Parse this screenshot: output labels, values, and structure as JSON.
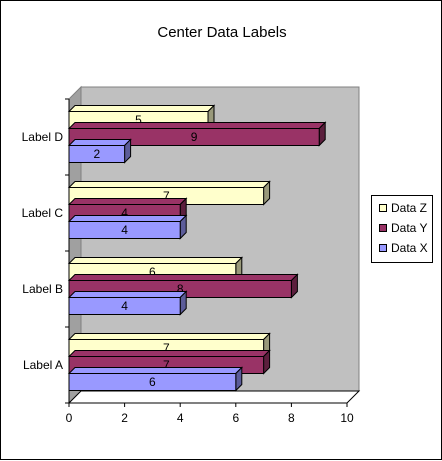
{
  "chart_data": {
    "type": "bar",
    "orientation": "horizontal",
    "title": "Center Data Labels",
    "categories": [
      "Label A",
      "Label B",
      "Label C",
      "Label D"
    ],
    "series": [
      {
        "name": "Data X",
        "values": [
          6,
          4,
          4,
          2
        ],
        "color": "#9999ff"
      },
      {
        "name": "Data Y",
        "values": [
          7,
          8,
          4,
          9
        ],
        "color": "#993366"
      },
      {
        "name": "Data Z",
        "values": [
          7,
          6,
          7,
          5
        ],
        "color": "#ffffcc"
      }
    ],
    "legend_order": [
      "Data Z",
      "Data Y",
      "Data X"
    ],
    "xlim": [
      0,
      10
    ],
    "x_ticks": [
      "0",
      "2",
      "4",
      "6",
      "8",
      "10"
    ],
    "data_labels": "center",
    "grid": false,
    "legend_position": "right",
    "wall_color": "#c0c0c0"
  }
}
